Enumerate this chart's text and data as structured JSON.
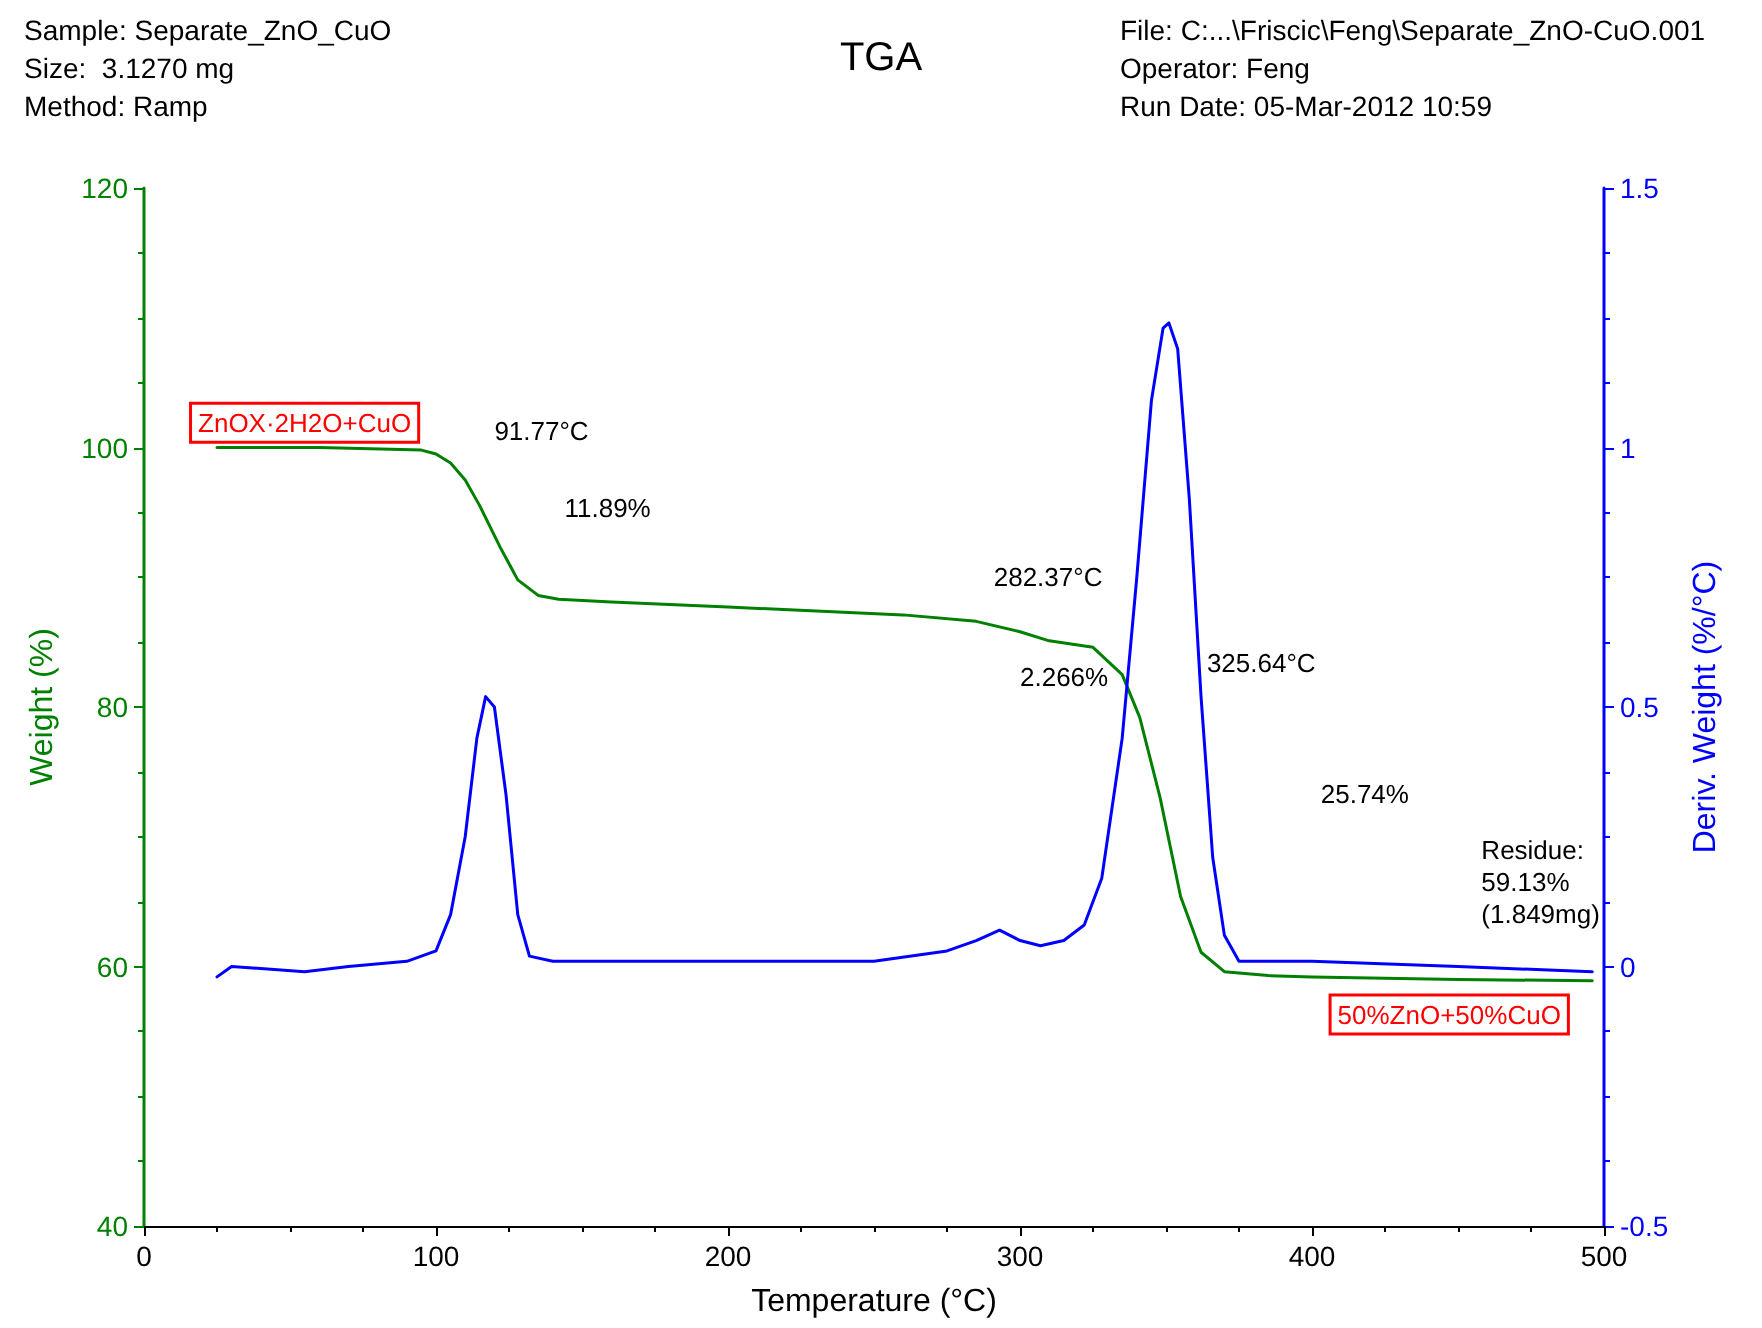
{
  "chart_data": {
    "type": "line",
    "title": "TGA",
    "xlabel": "Temperature (°C)",
    "ylabel": "Weight (%)",
    "y2label": "Deriv. Weight (%/°C)",
    "xlim": [
      0,
      500
    ],
    "xticks": [
      0,
      100,
      200,
      300,
      400,
      500
    ],
    "ylim": [
      40,
      120
    ],
    "yticks": [
      40,
      60,
      80,
      100,
      120
    ],
    "y2lim": [
      -0.5,
      1.5
    ],
    "y2ticks": [
      -0.5,
      0.0,
      0.5,
      1.0,
      1.5
    ],
    "marker": "none",
    "line_style": "solid",
    "series": [
      {
        "color": "#008000",
        "x": [
          25,
          60,
          95,
          100,
          105,
          110,
          115,
          122,
          128,
          135,
          142,
          160,
          200,
          260,
          285,
          300,
          310,
          325,
          335,
          341,
          348,
          355,
          362,
          370,
          385,
          400,
          450,
          496
        ],
        "values": [
          100,
          100,
          99.8,
          99.5,
          98.8,
          97.5,
          95.5,
          92.3,
          89.8,
          88.6,
          88.3,
          88.1,
          87.7,
          87.1,
          86.6,
          85.8,
          85.1,
          84.6,
          82.5,
          79.2,
          73,
          65.4,
          61.1,
          59.6,
          59.3,
          59.2,
          59.0,
          58.9
        ]
      },
      {
        "color": "#0000ff",
        "axis": "y2",
        "x": [
          25,
          30,
          55,
          70,
          90,
          100,
          105,
          110,
          114,
          117,
          120,
          124,
          128,
          132,
          140,
          200,
          250,
          275,
          285,
          293,
          300,
          307,
          315,
          322,
          328,
          335,
          340,
          345,
          349,
          351,
          354,
          358,
          362,
          366,
          370,
          375,
          400,
          450,
          496
        ],
        "values": [
          -0.02,
          0,
          -0.01,
          0,
          0.01,
          0.03,
          0.1,
          0.25,
          0.44,
          0.52,
          0.5,
          0.33,
          0.1,
          0.02,
          0.01,
          0.01,
          0.01,
          0.03,
          0.05,
          0.07,
          0.05,
          0.04,
          0.05,
          0.08,
          0.17,
          0.44,
          0.75,
          1.09,
          1.23,
          1.24,
          1.19,
          0.9,
          0.52,
          0.21,
          0.06,
          0.01,
          0.01,
          0,
          -0.01
        ]
      }
    ],
    "annotations": [
      "Sample: Separate_ZnO_CuO",
      "Size:  3.1270 mg",
      "Method: Ramp",
      "File: C:...\\Friscic\\Feng\\Separate_ZnO-CuO.001",
      "Operator: Feng",
      "Run Date: 05-Mar-2012 10:59",
      "ZnOX·2H2O+CuO",
      "91.77°C",
      "11.89%",
      "282.37°C",
      "2.266%",
      "325.64°C",
      "25.74%",
      "Residue:\n59.13%\n(1.849mg)",
      "50%ZnO+50%CuO"
    ]
  }
}
